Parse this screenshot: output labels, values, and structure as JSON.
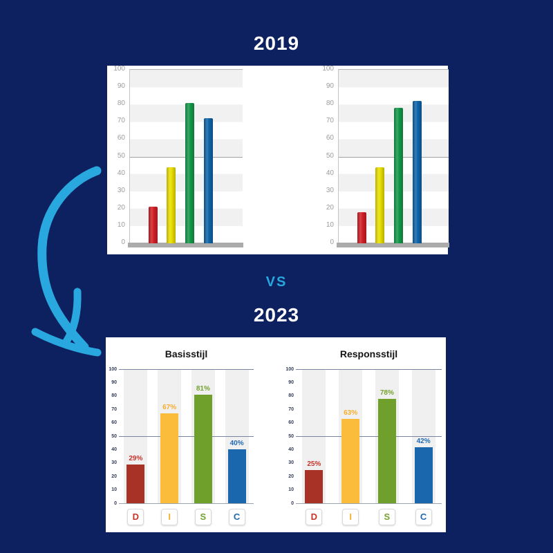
{
  "background_color": "#0D2160",
  "accent_color": "#29A8E0",
  "headings": {
    "top_year": "2019",
    "vs": "VS",
    "bottom_year": "2023"
  },
  "chart_data": [
    {
      "type": "bar",
      "panel": "2019",
      "position": "left",
      "title": "",
      "categories": [
        "red",
        "yellow",
        "green",
        "blue"
      ],
      "values": [
        21,
        44,
        81,
        72
      ],
      "bar_colors": [
        "#D01F26",
        "#E9DF00",
        "#14984A",
        "#0F63A8"
      ],
      "ylim": [
        0,
        100
      ],
      "ytick_labels": [
        "100",
        "90",
        "80",
        "70",
        "60",
        "50",
        "40",
        "30",
        "20",
        "10",
        "0"
      ],
      "grid": "alternating-horizontal-bands, darker line at 50, thick gray baseline",
      "legend": "none"
    },
    {
      "type": "bar",
      "panel": "2019",
      "position": "right",
      "title": "",
      "categories": [
        "red",
        "yellow",
        "green",
        "blue"
      ],
      "values": [
        18,
        44,
        78,
        82
      ],
      "bar_colors": [
        "#D01F26",
        "#E9DF00",
        "#14984A",
        "#0F63A8"
      ],
      "ylim": [
        0,
        100
      ],
      "ytick_labels": [
        "100",
        "90",
        "80",
        "70",
        "60",
        "50",
        "40",
        "30",
        "20",
        "10",
        "0"
      ],
      "grid": "alternating-horizontal-bands, darker line at 50, thick gray baseline",
      "legend": "none"
    },
    {
      "type": "bar",
      "panel": "2023",
      "position": "left",
      "title": "Basisstijl",
      "categories": [
        "D",
        "I",
        "S",
        "C"
      ],
      "values": [
        29,
        67,
        81,
        40
      ],
      "value_labels": [
        "29%",
        "67%",
        "81%",
        "40%"
      ],
      "bar_colors": [
        "#A93226",
        "#FBBB3B",
        "#70A02C",
        "#1B67AE"
      ],
      "category_colors": [
        "#C9342A",
        "#F6AE2D",
        "#74A22D",
        "#2069B2"
      ],
      "ylim": [
        0,
        100
      ],
      "ytick_labels": [
        "100",
        "90",
        "80",
        "70",
        "60",
        "50",
        "40",
        "30",
        "20",
        "10",
        "0"
      ],
      "grid": "lines at 100, 50 and 0; light gray column bands",
      "legend": "category letter boxes below axis"
    },
    {
      "type": "bar",
      "panel": "2023",
      "position": "right",
      "title": "Responsstijl",
      "categories": [
        "D",
        "I",
        "S",
        "C"
      ],
      "values": [
        25,
        63,
        78,
        42
      ],
      "value_labels": [
        "25%",
        "63%",
        "78%",
        "42%"
      ],
      "bar_colors": [
        "#A93226",
        "#FBBB3B",
        "#70A02C",
        "#1B67AE"
      ],
      "category_colors": [
        "#C9342A",
        "#F6AE2D",
        "#74A22D",
        "#2069B2"
      ],
      "ylim": [
        0,
        100
      ],
      "ytick_labels": [
        "100",
        "90",
        "80",
        "70",
        "60",
        "50",
        "40",
        "30",
        "20",
        "10",
        "0"
      ],
      "grid": "lines at 100, 50 and 0; light gray column bands",
      "legend": "category letter boxes below axis"
    }
  ]
}
